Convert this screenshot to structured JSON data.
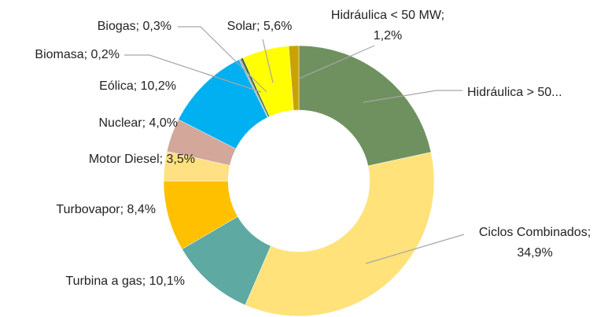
{
  "chart_data": {
    "type": "donut",
    "categories": [
      "Hidráulica > 50...",
      "Ciclos Combinados",
      "Turbina a gas",
      "Turbovapor",
      "Motor Diesel",
      "Nuclear",
      "Eólica",
      "Biomasa",
      "Biogas",
      "Solar",
      "Hidráulica < 50 MW"
    ],
    "values": [
      21.6,
      34.9,
      10.1,
      8.4,
      3.5,
      4.0,
      10.2,
      0.2,
      0.3,
      5.6,
      1.2
    ],
    "value_labels": [
      null,
      "Ciclos Combinados;\n34,9%",
      "Turbina a gas; 10,1%",
      "Turbovapor; 8,4%",
      "Motor Diesel; 3,5%",
      "Nuclear; 4,0%",
      "Eólica; 10,2%",
      "Biomasa; 0,2%",
      "Biogas; 0,3%",
      "Solar; 5,6%",
      "Hidráulica < 50 MW;\n1,2%"
    ],
    "colors": [
      "#6f9160",
      "#ffe27a",
      "#5ea9a2",
      "#ffc000",
      "#ffe082",
      "#d3a79a",
      "#00b0f0",
      "#a9a9a9",
      "#3f6b3a",
      "#ffff00",
      "#c9a400"
    ]
  }
}
